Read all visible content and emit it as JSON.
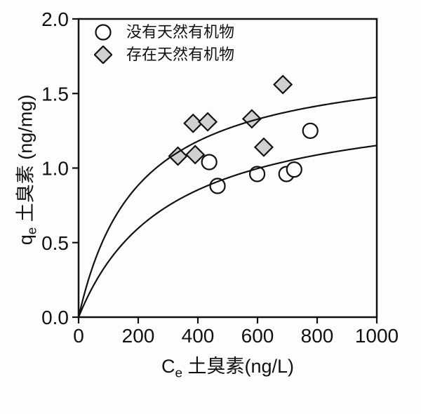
{
  "chart_data": {
    "type": "scatter",
    "title": "",
    "xlabel": {
      "symbol": "C",
      "subscript": "e",
      "text": " 土臭素(ng/L)"
    },
    "ylabel": {
      "symbol": "q",
      "subscript": "e",
      "text": " 土臭素 (ng/mg)"
    },
    "xlim": [
      0,
      1000
    ],
    "ylim": [
      0.0,
      2.0
    ],
    "xticks": {
      "values": [
        0,
        200,
        400,
        600,
        800,
        1000
      ],
      "labels": [
        "0",
        "200",
        "400",
        "600",
        "800",
        "1000"
      ]
    },
    "yticks": {
      "values": [
        0,
        0.5,
        1.0,
        1.5,
        2.0
      ],
      "labels": [
        "0.0",
        "0.5",
        "1.0",
        "1.5",
        "2.0"
      ]
    },
    "grid": false,
    "legend_position": "upper-left-inside",
    "axis_color": "#111111",
    "background": "#fdfdfd",
    "series": [
      {
        "name": "没有天然有机物",
        "marker": "circle",
        "marker_fill": "#ffffff",
        "marker_stroke": "#111111",
        "points": [
          [
            438,
            1.04
          ],
          [
            466,
            0.88
          ],
          [
            599,
            0.96
          ],
          [
            697,
            0.96
          ],
          [
            723,
            0.99
          ],
          [
            777,
            1.25
          ]
        ]
      },
      {
        "name": "存在天然有机物",
        "marker": "diamond",
        "marker_fill": "#d0d0d0",
        "marker_stroke": "#111111",
        "points": [
          [
            333,
            1.08
          ],
          [
            384,
            1.3
          ],
          [
            391,
            1.09
          ],
          [
            433,
            1.31
          ],
          [
            581,
            1.33
          ],
          [
            621,
            1.14
          ],
          [
            685,
            1.56
          ]
        ]
      }
    ],
    "fit_curves": [
      {
        "name": "langmuir-fit-upper",
        "model": "langmuir",
        "qmax": 1.77,
        "b": 0.005,
        "q_at_x1000": 1.48,
        "color": "#111111"
      },
      {
        "name": "langmuir-fit-lower",
        "model": "langmuir",
        "qmax": 1.5,
        "b": 0.0033,
        "q_at_x1000": 1.15,
        "color": "#111111"
      }
    ]
  }
}
